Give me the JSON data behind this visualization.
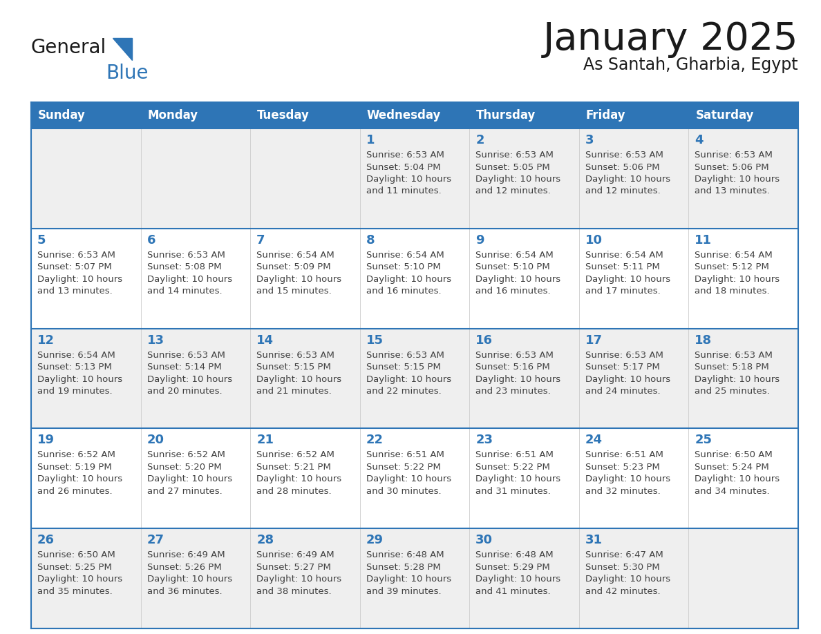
{
  "title": "January 2025",
  "subtitle": "As Santah, Gharbia, Egypt",
  "days_of_week": [
    "Sunday",
    "Monday",
    "Tuesday",
    "Wednesday",
    "Thursday",
    "Friday",
    "Saturday"
  ],
  "header_bg": "#2E75B6",
  "header_text": "#FFFFFF",
  "row_bg_odd": "#EFEFEF",
  "row_bg_even": "#FFFFFF",
  "day_number_color": "#2E75B6",
  "text_color": "#404040",
  "line_color": "#2E75B6",
  "logo_general_color": "#1a1a1a",
  "logo_blue_color": "#2E75B6",
  "calendar_data": [
    [
      null,
      null,
      null,
      {
        "day": 1,
        "sunrise": "6:53 AM",
        "sunset": "5:04 PM",
        "daylight": "10 hours and 11 minutes."
      },
      {
        "day": 2,
        "sunrise": "6:53 AM",
        "sunset": "5:05 PM",
        "daylight": "10 hours and 12 minutes."
      },
      {
        "day": 3,
        "sunrise": "6:53 AM",
        "sunset": "5:06 PM",
        "daylight": "10 hours and 12 minutes."
      },
      {
        "day": 4,
        "sunrise": "6:53 AM",
        "sunset": "5:06 PM",
        "daylight": "10 hours and 13 minutes."
      }
    ],
    [
      {
        "day": 5,
        "sunrise": "6:53 AM",
        "sunset": "5:07 PM",
        "daylight": "10 hours and 13 minutes."
      },
      {
        "day": 6,
        "sunrise": "6:53 AM",
        "sunset": "5:08 PM",
        "daylight": "10 hours and 14 minutes."
      },
      {
        "day": 7,
        "sunrise": "6:54 AM",
        "sunset": "5:09 PM",
        "daylight": "10 hours and 15 minutes."
      },
      {
        "day": 8,
        "sunrise": "6:54 AM",
        "sunset": "5:10 PM",
        "daylight": "10 hours and 16 minutes."
      },
      {
        "day": 9,
        "sunrise": "6:54 AM",
        "sunset": "5:10 PM",
        "daylight": "10 hours and 16 minutes."
      },
      {
        "day": 10,
        "sunrise": "6:54 AM",
        "sunset": "5:11 PM",
        "daylight": "10 hours and 17 minutes."
      },
      {
        "day": 11,
        "sunrise": "6:54 AM",
        "sunset": "5:12 PM",
        "daylight": "10 hours and 18 minutes."
      }
    ],
    [
      {
        "day": 12,
        "sunrise": "6:54 AM",
        "sunset": "5:13 PM",
        "daylight": "10 hours and 19 minutes."
      },
      {
        "day": 13,
        "sunrise": "6:53 AM",
        "sunset": "5:14 PM",
        "daylight": "10 hours and 20 minutes."
      },
      {
        "day": 14,
        "sunrise": "6:53 AM",
        "sunset": "5:15 PM",
        "daylight": "10 hours and 21 minutes."
      },
      {
        "day": 15,
        "sunrise": "6:53 AM",
        "sunset": "5:15 PM",
        "daylight": "10 hours and 22 minutes."
      },
      {
        "day": 16,
        "sunrise": "6:53 AM",
        "sunset": "5:16 PM",
        "daylight": "10 hours and 23 minutes."
      },
      {
        "day": 17,
        "sunrise": "6:53 AM",
        "sunset": "5:17 PM",
        "daylight": "10 hours and 24 minutes."
      },
      {
        "day": 18,
        "sunrise": "6:53 AM",
        "sunset": "5:18 PM",
        "daylight": "10 hours and 25 minutes."
      }
    ],
    [
      {
        "day": 19,
        "sunrise": "6:52 AM",
        "sunset": "5:19 PM",
        "daylight": "10 hours and 26 minutes."
      },
      {
        "day": 20,
        "sunrise": "6:52 AM",
        "sunset": "5:20 PM",
        "daylight": "10 hours and 27 minutes."
      },
      {
        "day": 21,
        "sunrise": "6:52 AM",
        "sunset": "5:21 PM",
        "daylight": "10 hours and 28 minutes."
      },
      {
        "day": 22,
        "sunrise": "6:51 AM",
        "sunset": "5:22 PM",
        "daylight": "10 hours and 30 minutes."
      },
      {
        "day": 23,
        "sunrise": "6:51 AM",
        "sunset": "5:22 PM",
        "daylight": "10 hours and 31 minutes."
      },
      {
        "day": 24,
        "sunrise": "6:51 AM",
        "sunset": "5:23 PM",
        "daylight": "10 hours and 32 minutes."
      },
      {
        "day": 25,
        "sunrise": "6:50 AM",
        "sunset": "5:24 PM",
        "daylight": "10 hours and 34 minutes."
      }
    ],
    [
      {
        "day": 26,
        "sunrise": "6:50 AM",
        "sunset": "5:25 PM",
        "daylight": "10 hours and 35 minutes."
      },
      {
        "day": 27,
        "sunrise": "6:49 AM",
        "sunset": "5:26 PM",
        "daylight": "10 hours and 36 minutes."
      },
      {
        "day": 28,
        "sunrise": "6:49 AM",
        "sunset": "5:27 PM",
        "daylight": "10 hours and 38 minutes."
      },
      {
        "day": 29,
        "sunrise": "6:48 AM",
        "sunset": "5:28 PM",
        "daylight": "10 hours and 39 minutes."
      },
      {
        "day": 30,
        "sunrise": "6:48 AM",
        "sunset": "5:29 PM",
        "daylight": "10 hours and 41 minutes."
      },
      {
        "day": 31,
        "sunrise": "6:47 AM",
        "sunset": "5:30 PM",
        "daylight": "10 hours and 42 minutes."
      },
      null
    ]
  ]
}
